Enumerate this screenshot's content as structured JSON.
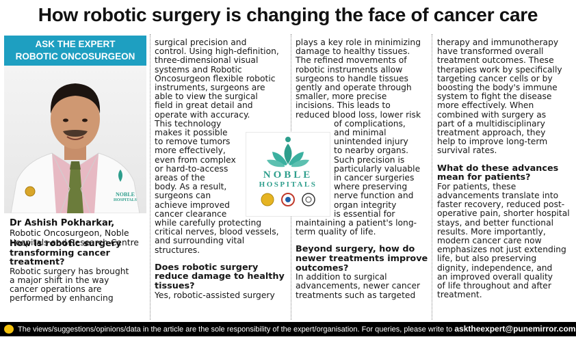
{
  "headline": "How robotic surgery is changing the face of cancer care",
  "expert": {
    "line1": "ASK THE EXPERT",
    "line2": "ROBOTIC ONCOSURGEON"
  },
  "photo": {
    "badge_line1": "NOBLE",
    "badge_line2": "HOSPITALS"
  },
  "doctor": {
    "name": "Dr Ashish Pokharkar,",
    "title_lines": [
      "Robotic Oncosurgeon, Noble",
      "Hospitals and Research Centre"
    ]
  },
  "col1": {
    "q1_lines": [
      "How is robotic surgery",
      "transforming cancer",
      "treatment?"
    ],
    "a1_lines": [
      "Robotic surgery has brought",
      "a major shift in the way",
      "cancer operations are",
      "performed by enhancing"
    ]
  },
  "col2": {
    "lines_top": [
      "surgical precision and",
      "control. Using high-definition,",
      "three-dimensional visual",
      "systems and Robotic",
      "Oncosurgeon flexible robotic",
      "instruments, surgeons are",
      "able to view the surgical",
      "field in great detail and",
      "operate with accuracy."
    ],
    "lines_narrow": [
      "This technology",
      "makes it possible",
      "to remove tumors",
      "more effectively,",
      "even from complex",
      "or hard-to-access",
      "areas of the",
      "body. As a result,",
      "surgeons can",
      "achieve improved",
      "cancer clearance"
    ],
    "lines_bottom": [
      "while carefully protecting",
      "critical nerves, blood vessels,",
      "and surrounding vital",
      "structures."
    ],
    "q2_lines": [
      "Does robotic surgery",
      "reduce damage to healthy",
      "tissues?"
    ],
    "a2_lines": [
      "Yes, robotic-assisted surgery"
    ]
  },
  "col3": {
    "lines_top": [
      "plays a key role in minimizing",
      "damage to healthy tissues.",
      "The refined movements of",
      "robotic instruments allow",
      "surgeons to handle tissues",
      "gently and operate through",
      "smaller, more precise",
      "incisions. This leads to",
      "reduced blood loss, lower risk"
    ],
    "lines_narrow": [
      "of complications,",
      "and minimal",
      "unintended injury",
      "to nearby organs.",
      "Such precision is",
      "particularly valuable",
      "in cancer surgeries",
      "where preserving",
      "nerve function and",
      "organ integrity",
      "is essential for"
    ],
    "lines_bottom": [
      "maintaining a patient's long-",
      "term quality of life."
    ],
    "q3_lines": [
      "Beyond surgery, how do",
      "newer treatments improve",
      "outcomes?"
    ],
    "a3_lines": [
      "In addition to surgical",
      "advancements, newer cancer",
      "treatments such as targeted"
    ]
  },
  "col4": {
    "a3_cont_lines": [
      "therapy and immunotherapy",
      "have transformed overall",
      "treatment outcomes. These",
      "therapies work by specifically",
      "targeting cancer cells or by",
      "boosting the body's immune",
      "system to fight the disease",
      "more effectively. When",
      "combined with surgery as",
      "part of a multidisciplinary",
      "treatment approach, they",
      "help to improve long-term",
      "survival rates."
    ],
    "q4_lines": [
      "What do these advances",
      "mean for patients?"
    ],
    "a4_lines": [
      "For patients, these",
      "advancements translate into",
      "faster recovery, reduced post-",
      "operative pain, shorter hospital",
      "stays, and better functional",
      "results. More importantly,",
      "modern cancer care now",
      "emphasizes not just extending",
      "life, but also preserving",
      "dignity, independence, and",
      "an improved overall quality",
      "of life throughout and after",
      "treatment."
    ]
  },
  "logo": {
    "line1": "NOBLE",
    "line2": "HOSPITALS"
  },
  "footer": {
    "disclaimer": "The views/suggestions/opinions/data in the article are the sole responsibility of the expert/organisation. For queries, please write to",
    "email": "asktheexpert@punemirror.com"
  },
  "colors": {
    "accent": "#1e9fc1",
    "logo_green": "#2e9e8c",
    "footer_bg": "#000000"
  }
}
